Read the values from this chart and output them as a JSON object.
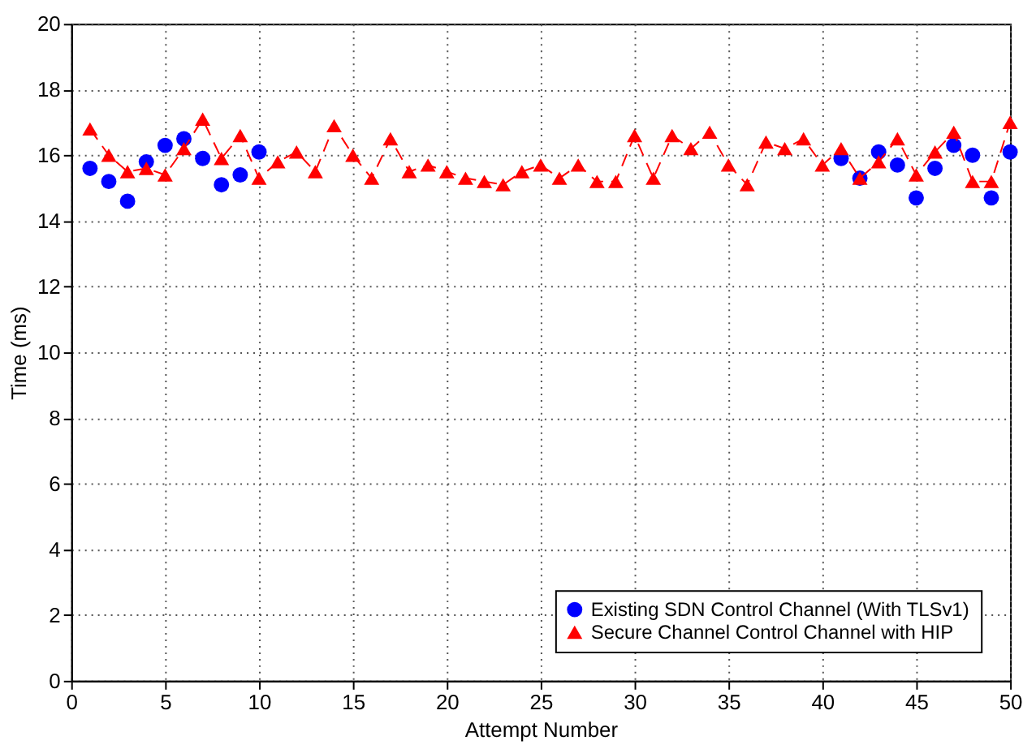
{
  "chart_data": {
    "type": "line",
    "xlabel": "Attempt Number",
    "ylabel": "Time (ms)",
    "x": [
      1,
      2,
      3,
      4,
      5,
      6,
      7,
      8,
      9,
      10,
      11,
      12,
      13,
      14,
      15,
      16,
      17,
      18,
      19,
      20,
      21,
      22,
      23,
      24,
      25,
      26,
      27,
      28,
      29,
      30,
      31,
      32,
      33,
      34,
      35,
      36,
      37,
      38,
      39,
      40,
      41,
      42,
      43,
      44,
      45,
      46,
      47,
      48,
      49,
      50
    ],
    "series": [
      {
        "name": "Existing SDN Control Channel (With TLSv1)",
        "type": "scatter",
        "marker": "circle",
        "color": "#0000ff",
        "values": [
          15.6,
          15.2,
          14.6,
          15.8,
          16.3,
          16.5,
          15.9,
          15.1,
          15.4,
          16.1,
          null,
          null,
          null,
          null,
          null,
          null,
          null,
          null,
          null,
          null,
          null,
          null,
          null,
          null,
          null,
          null,
          null,
          null,
          null,
          null,
          null,
          null,
          null,
          null,
          null,
          null,
          null,
          null,
          null,
          null,
          15.9,
          15.3,
          16.1,
          15.7,
          14.7,
          15.6,
          16.3,
          16.0,
          14.7,
          16.1
        ]
      },
      {
        "name": "Secure Channel Control Channel with HIP",
        "marker": "triangle",
        "line_style": "dashed",
        "color": "#ff0000",
        "values": [
          16.8,
          16.0,
          15.5,
          15.6,
          15.4,
          16.2,
          17.1,
          15.9,
          16.6,
          15.3,
          15.8,
          16.1,
          15.5,
          16.9,
          16.0,
          15.3,
          16.5,
          15.5,
          15.7,
          15.5,
          15.3,
          15.2,
          15.1,
          15.5,
          15.7,
          15.3,
          15.7,
          15.2,
          15.2,
          16.6,
          15.3,
          16.6,
          16.2,
          16.7,
          15.7,
          15.1,
          16.4,
          16.2,
          16.5,
          15.7,
          16.2,
          15.3,
          15.8,
          16.5,
          15.4,
          16.1,
          16.7,
          15.2,
          15.2,
          17.0
        ]
      }
    ],
    "xlim": [
      0,
      50
    ],
    "xticks": [
      0,
      5,
      10,
      15,
      20,
      25,
      30,
      35,
      40,
      45,
      50
    ],
    "ylim": [
      0,
      20
    ],
    "yticks": [
      0,
      2,
      4,
      6,
      8,
      10,
      12,
      14,
      16,
      18,
      20
    ],
    "grid": true,
    "legend": "bottom right"
  }
}
